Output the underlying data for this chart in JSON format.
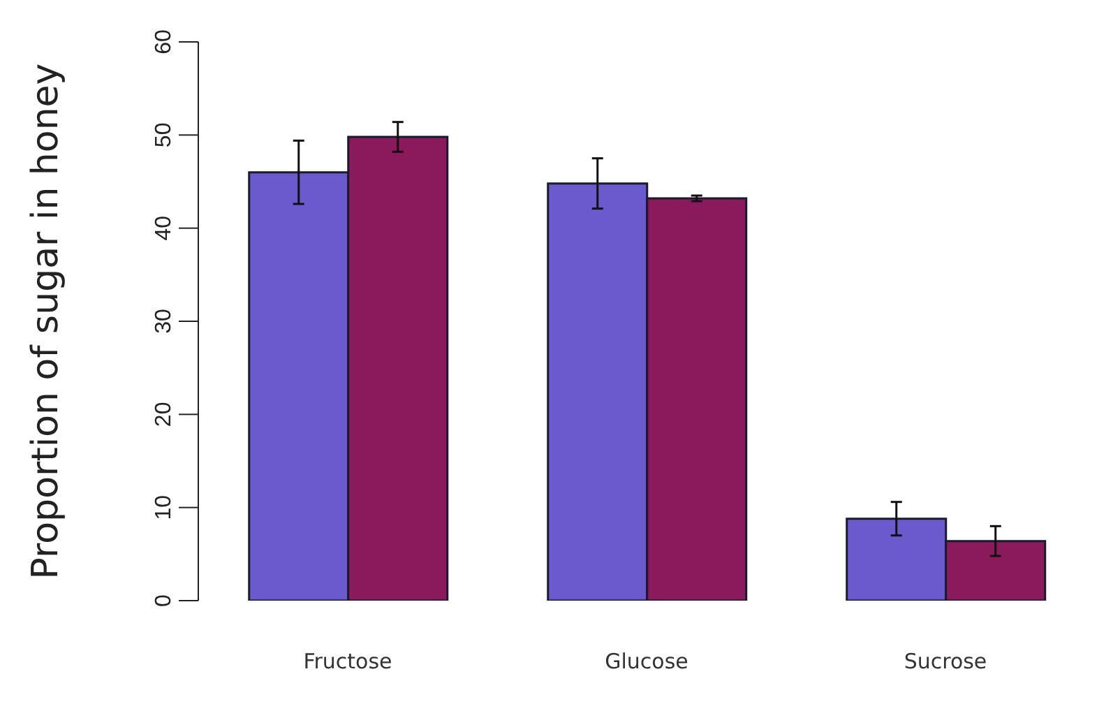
{
  "chart_data": {
    "type": "bar",
    "ylabel": "Proportion of sugar in honey",
    "categories": [
      "Fructose",
      "Glucose",
      "Sucrose"
    ],
    "series": [
      {
        "color": "#6a5acd",
        "values": [
          46.0,
          44.8,
          8.8
        ],
        "errors": [
          3.4,
          2.7,
          1.8
        ]
      },
      {
        "color": "#8b1a5c",
        "values": [
          49.8,
          43.2,
          6.4
        ],
        "errors": [
          1.6,
          0.3,
          1.6
        ]
      }
    ],
    "ylim": [
      0,
      60
    ],
    "yticks": [
      0,
      10,
      20,
      30,
      40,
      50,
      60
    ],
    "grid": false,
    "legend": false
  }
}
